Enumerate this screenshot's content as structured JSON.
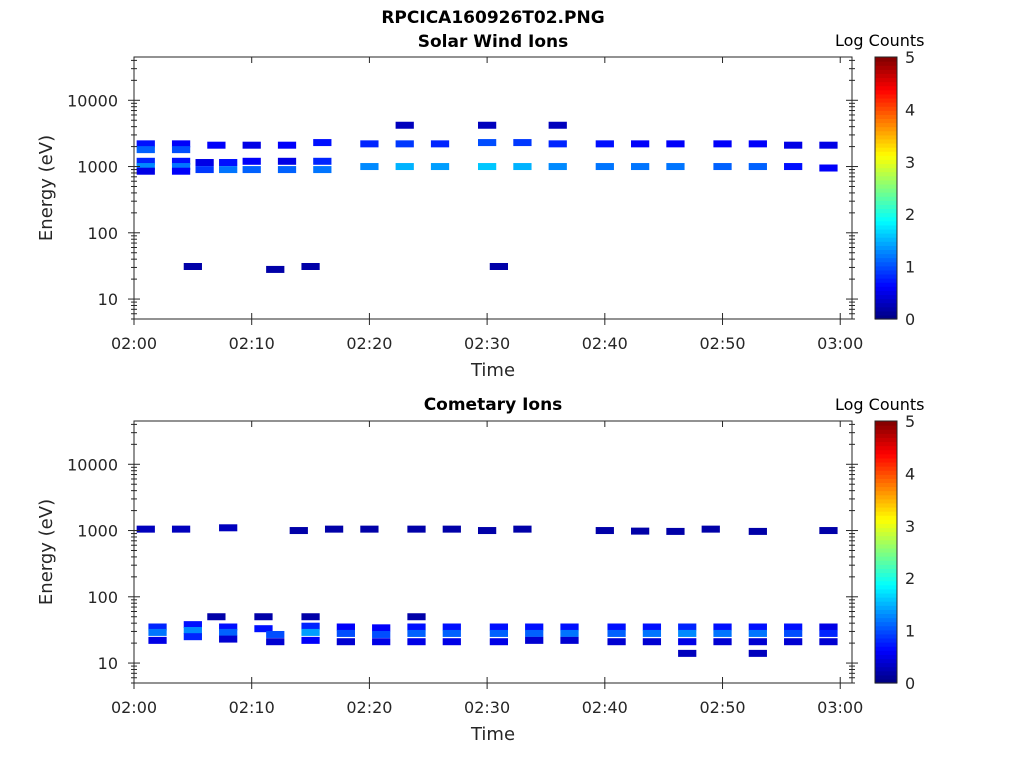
{
  "figure": {
    "title": "RPCICA160926T02.PNG"
  },
  "panels": {
    "solar_wind": {
      "title": "Solar Wind Ions",
      "colorbar_label": "Log Counts"
    },
    "cometary": {
      "title": "Cometary Ions",
      "colorbar_label": "Log Counts"
    }
  },
  "colors": {
    "colormap": "jet",
    "axes_edge": "#262626",
    "background": "#ffffff"
  },
  "chart_data": [
    {
      "type": "heatmap",
      "title": "Solar Wind Ions",
      "xlabel": "Time",
      "ylabel": "Energy (eV)",
      "x_unit": "HH:MM",
      "x_ticks": [
        "02:00",
        "02:10",
        "02:20",
        "02:30",
        "02:40",
        "02:50",
        "03:00"
      ],
      "xlim": [
        "02:00",
        "03:01"
      ],
      "y_scale": "log",
      "y_ticks": [
        10,
        100,
        1000,
        10000
      ],
      "ylim": [
        5,
        45000
      ],
      "colorbar": {
        "label": "Log Counts",
        "ticks": [
          0,
          1,
          2,
          3,
          4,
          5
        ],
        "range": [
          0,
          5
        ]
      },
      "cells": [
        {
          "t": "02:01",
          "e": 2200,
          "v": 0.7
        },
        {
          "t": "02:01",
          "e": 1800,
          "v": 1.1
        },
        {
          "t": "02:01",
          "e": 1200,
          "v": 0.8
        },
        {
          "t": "02:01",
          "e": 1000,
          "v": 1.3
        },
        {
          "t": "02:01",
          "e": 850,
          "v": 0.5
        },
        {
          "t": "02:04",
          "e": 2200,
          "v": 0.6
        },
        {
          "t": "02:04",
          "e": 1800,
          "v": 1.0
        },
        {
          "t": "02:04",
          "e": 1200,
          "v": 0.7
        },
        {
          "t": "02:04",
          "e": 1000,
          "v": 1.2
        },
        {
          "t": "02:04",
          "e": 850,
          "v": 0.6
        },
        {
          "t": "02:06",
          "e": 1150,
          "v": 0.5
        },
        {
          "t": "02:06",
          "e": 900,
          "v": 0.9
        },
        {
          "t": "02:07",
          "e": 2100,
          "v": 0.6
        },
        {
          "t": "02:08",
          "e": 1150,
          "v": 0.7
        },
        {
          "t": "02:08",
          "e": 900,
          "v": 1.2
        },
        {
          "t": "02:10",
          "e": 2100,
          "v": 0.5
        },
        {
          "t": "02:10",
          "e": 1200,
          "v": 0.6
        },
        {
          "t": "02:10",
          "e": 900,
          "v": 1.1
        },
        {
          "t": "02:13",
          "e": 2100,
          "v": 0.6
        },
        {
          "t": "02:13",
          "e": 1200,
          "v": 0.5
        },
        {
          "t": "02:13",
          "e": 900,
          "v": 1.1
        },
        {
          "t": "02:16",
          "e": 2300,
          "v": 0.7
        },
        {
          "t": "02:16",
          "e": 1200,
          "v": 0.8
        },
        {
          "t": "02:16",
          "e": 900,
          "v": 1.2
        },
        {
          "t": "02:20",
          "e": 2200,
          "v": 0.8
        },
        {
          "t": "02:20",
          "e": 1000,
          "v": 1.3
        },
        {
          "t": "02:23",
          "e": 4200,
          "v": 0.3
        },
        {
          "t": "02:23",
          "e": 2200,
          "v": 0.9
        },
        {
          "t": "02:23",
          "e": 1000,
          "v": 1.5
        },
        {
          "t": "02:26",
          "e": 2200,
          "v": 0.8
        },
        {
          "t": "02:26",
          "e": 1000,
          "v": 1.4
        },
        {
          "t": "02:30",
          "e": 4200,
          "v": 0.3
        },
        {
          "t": "02:30",
          "e": 2300,
          "v": 1.0
        },
        {
          "t": "02:30",
          "e": 1000,
          "v": 1.6
        },
        {
          "t": "02:33",
          "e": 2300,
          "v": 0.9
        },
        {
          "t": "02:33",
          "e": 1000,
          "v": 1.5
        },
        {
          "t": "02:36",
          "e": 4200,
          "v": 0.3
        },
        {
          "t": "02:36",
          "e": 2200,
          "v": 0.8
        },
        {
          "t": "02:36",
          "e": 1000,
          "v": 1.3
        },
        {
          "t": "02:40",
          "e": 2200,
          "v": 0.7
        },
        {
          "t": "02:40",
          "e": 1000,
          "v": 1.2
        },
        {
          "t": "02:43",
          "e": 2200,
          "v": 0.6
        },
        {
          "t": "02:43",
          "e": 1000,
          "v": 1.2
        },
        {
          "t": "02:46",
          "e": 2200,
          "v": 0.6
        },
        {
          "t": "02:46",
          "e": 1000,
          "v": 1.2
        },
        {
          "t": "02:50",
          "e": 2200,
          "v": 0.6
        },
        {
          "t": "02:50",
          "e": 1000,
          "v": 1.1
        },
        {
          "t": "02:53",
          "e": 2200,
          "v": 0.6
        },
        {
          "t": "02:53",
          "e": 1000,
          "v": 1.1
        },
        {
          "t": "02:56",
          "e": 2100,
          "v": 0.5
        },
        {
          "t": "02:56",
          "e": 1000,
          "v": 0.7
        },
        {
          "t": "02:59",
          "e": 2100,
          "v": 0.5
        },
        {
          "t": "02:59",
          "e": 950,
          "v": 0.6
        },
        {
          "t": "02:05",
          "e": 31,
          "v": 0.2
        },
        {
          "t": "02:12",
          "e": 28,
          "v": 0.2
        },
        {
          "t": "02:15",
          "e": 31,
          "v": 0.2
        },
        {
          "t": "02:31",
          "e": 31,
          "v": 0.2
        }
      ]
    },
    {
      "type": "heatmap",
      "title": "Cometary Ions",
      "xlabel": "Time",
      "ylabel": "Energy (eV)",
      "x_unit": "HH:MM",
      "x_ticks": [
        "02:00",
        "02:10",
        "02:20",
        "02:30",
        "02:40",
        "02:50",
        "03:00"
      ],
      "xlim": [
        "02:00",
        "03:01"
      ],
      "y_scale": "log",
      "y_ticks": [
        10,
        100,
        1000,
        10000
      ],
      "ylim": [
        5,
        45000
      ],
      "colorbar": {
        "label": "Log Counts",
        "ticks": [
          0,
          1,
          2,
          3,
          4,
          5
        ],
        "range": [
          0,
          5
        ]
      },
      "cells": [
        {
          "t": "02:01",
          "e": 1050,
          "v": 0.3
        },
        {
          "t": "02:04",
          "e": 1050,
          "v": 0.3
        },
        {
          "t": "02:08",
          "e": 1100,
          "v": 0.3
        },
        {
          "t": "02:14",
          "e": 1000,
          "v": 0.2
        },
        {
          "t": "02:17",
          "e": 1050,
          "v": 0.2
        },
        {
          "t": "02:20",
          "e": 1050,
          "v": 0.2
        },
        {
          "t": "02:24",
          "e": 1050,
          "v": 0.2
        },
        {
          "t": "02:27",
          "e": 1050,
          "v": 0.2
        },
        {
          "t": "02:30",
          "e": 1000,
          "v": 0.2
        },
        {
          "t": "02:33",
          "e": 1050,
          "v": 0.2
        },
        {
          "t": "02:40",
          "e": 1000,
          "v": 0.2
        },
        {
          "t": "02:43",
          "e": 980,
          "v": 0.2
        },
        {
          "t": "02:46",
          "e": 970,
          "v": 0.2
        },
        {
          "t": "02:49",
          "e": 1050,
          "v": 0.2
        },
        {
          "t": "02:53",
          "e": 970,
          "v": 0.2
        },
        {
          "t": "02:59",
          "e": 1000,
          "v": 0.2
        },
        {
          "t": "02:02",
          "e": 35,
          "v": 0.8
        },
        {
          "t": "02:02",
          "e": 29,
          "v": 1.2
        },
        {
          "t": "02:02",
          "e": 22,
          "v": 0.5
        },
        {
          "t": "02:05",
          "e": 38,
          "v": 0.7
        },
        {
          "t": "02:05",
          "e": 31,
          "v": 1.3
        },
        {
          "t": "02:05",
          "e": 25,
          "v": 0.8
        },
        {
          "t": "02:07",
          "e": 50,
          "v": 0.2
        },
        {
          "t": "02:08",
          "e": 35,
          "v": 0.7
        },
        {
          "t": "02:08",
          "e": 29,
          "v": 1.1
        },
        {
          "t": "02:08",
          "e": 23,
          "v": 0.4
        },
        {
          "t": "02:11",
          "e": 50,
          "v": 0.2
        },
        {
          "t": "02:11",
          "e": 33,
          "v": 0.7
        },
        {
          "t": "02:12",
          "e": 27,
          "v": 1.0
        },
        {
          "t": "02:12",
          "e": 21,
          "v": 0.4
        },
        {
          "t": "02:15",
          "e": 50,
          "v": 0.2
        },
        {
          "t": "02:15",
          "e": 36,
          "v": 0.8
        },
        {
          "t": "02:15",
          "e": 29,
          "v": 1.4
        },
        {
          "t": "02:15",
          "e": 22,
          "v": 0.6
        },
        {
          "t": "02:18",
          "e": 35,
          "v": 0.6
        },
        {
          "t": "02:18",
          "e": 28,
          "v": 1.0
        },
        {
          "t": "02:18",
          "e": 21,
          "v": 0.4
        },
        {
          "t": "02:21",
          "e": 34,
          "v": 0.6
        },
        {
          "t": "02:21",
          "e": 27,
          "v": 1.0
        },
        {
          "t": "02:21",
          "e": 21,
          "v": 0.5
        },
        {
          "t": "02:24",
          "e": 50,
          "v": 0.2
        },
        {
          "t": "02:24",
          "e": 35,
          "v": 0.7
        },
        {
          "t": "02:24",
          "e": 28,
          "v": 1.1
        },
        {
          "t": "02:24",
          "e": 21,
          "v": 0.5
        },
        {
          "t": "02:27",
          "e": 35,
          "v": 0.7
        },
        {
          "t": "02:27",
          "e": 28,
          "v": 1.1
        },
        {
          "t": "02:27",
          "e": 21,
          "v": 0.5
        },
        {
          "t": "02:31",
          "e": 35,
          "v": 0.7
        },
        {
          "t": "02:31",
          "e": 28,
          "v": 1.1
        },
        {
          "t": "02:31",
          "e": 21,
          "v": 0.5
        },
        {
          "t": "02:34",
          "e": 35,
          "v": 0.7
        },
        {
          "t": "02:34",
          "e": 28,
          "v": 1.1
        },
        {
          "t": "02:34",
          "e": 22,
          "v": 0.4
        },
        {
          "t": "02:37",
          "e": 35,
          "v": 0.7
        },
        {
          "t": "02:37",
          "e": 28,
          "v": 1.2
        },
        {
          "t": "02:37",
          "e": 22,
          "v": 0.4
        },
        {
          "t": "02:41",
          "e": 35,
          "v": 0.7
        },
        {
          "t": "02:41",
          "e": 28,
          "v": 1.1
        },
        {
          "t": "02:41",
          "e": 21,
          "v": 0.4
        },
        {
          "t": "02:44",
          "e": 35,
          "v": 0.7
        },
        {
          "t": "02:44",
          "e": 28,
          "v": 1.2
        },
        {
          "t": "02:44",
          "e": 21,
          "v": 0.4
        },
        {
          "t": "02:47",
          "e": 35,
          "v": 0.8
        },
        {
          "t": "02:47",
          "e": 28,
          "v": 1.3
        },
        {
          "t": "02:47",
          "e": 21,
          "v": 0.5
        },
        {
          "t": "02:47",
          "e": 14,
          "v": 0.3
        },
        {
          "t": "02:50",
          "e": 35,
          "v": 0.7
        },
        {
          "t": "02:50",
          "e": 28,
          "v": 1.2
        },
        {
          "t": "02:50",
          "e": 21,
          "v": 0.4
        },
        {
          "t": "02:53",
          "e": 35,
          "v": 0.7
        },
        {
          "t": "02:53",
          "e": 28,
          "v": 1.2
        },
        {
          "t": "02:53",
          "e": 21,
          "v": 0.4
        },
        {
          "t": "02:53",
          "e": 14,
          "v": 0.3
        },
        {
          "t": "02:56",
          "e": 35,
          "v": 0.7
        },
        {
          "t": "02:56",
          "e": 28,
          "v": 1.0
        },
        {
          "t": "02:56",
          "e": 21,
          "v": 0.4
        },
        {
          "t": "02:59",
          "e": 35,
          "v": 0.5
        },
        {
          "t": "02:59",
          "e": 28,
          "v": 0.8
        },
        {
          "t": "02:59",
          "e": 21,
          "v": 0.4
        }
      ]
    }
  ]
}
